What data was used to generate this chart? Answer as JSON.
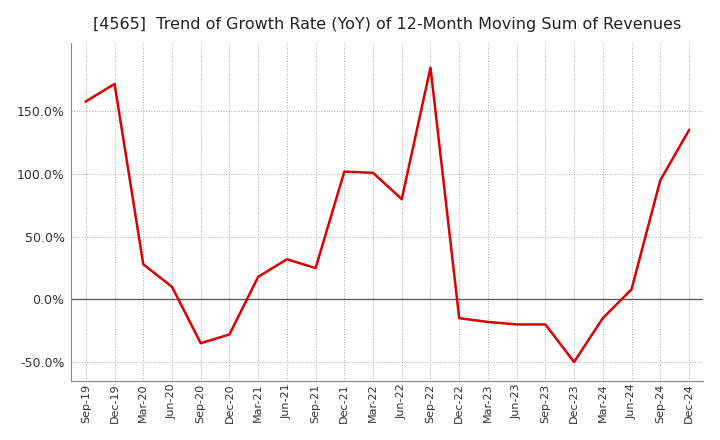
{
  "title": "[4565]  Trend of Growth Rate (YoY) of 12-Month Moving Sum of Revenues",
  "title_fontsize": 11.5,
  "title_color": "#222222",
  "line_color": "#dd0000",
  "background_color": "#ffffff",
  "grid_color": "#aaaaaa",
  "ylim": [
    -65,
    205
  ],
  "yticks": [
    -50.0,
    0.0,
    50.0,
    100.0,
    150.0
  ],
  "data": [
    [
      "Sep-19",
      158
    ],
    [
      "Dec-19",
      172
    ],
    [
      "Mar-20",
      28
    ],
    [
      "Jun-20",
      10
    ],
    [
      "Sep-20",
      -35
    ],
    [
      "Dec-20",
      -28
    ],
    [
      "Mar-21",
      18
    ],
    [
      "Jun-21",
      32
    ],
    [
      "Sep-21",
      25
    ],
    [
      "Dec-21",
      102
    ],
    [
      "Mar-22",
      101
    ],
    [
      "Jun-22",
      80
    ],
    [
      "Sep-22",
      185
    ],
    [
      "Dec-22",
      -15
    ],
    [
      "Mar-23",
      -18
    ],
    [
      "Jun-23",
      -20
    ],
    [
      "Sep-23",
      -20
    ],
    [
      "Dec-23",
      -50
    ],
    [
      "Mar-24",
      -15
    ],
    [
      "Jun-24",
      8
    ],
    [
      "Sep-24",
      95
    ],
    [
      "Dec-24",
      135
    ]
  ]
}
